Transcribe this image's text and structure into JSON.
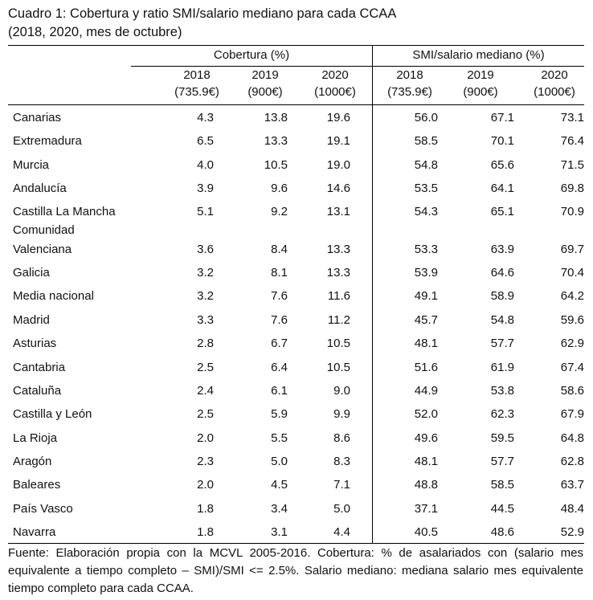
{
  "caption": {
    "line1": "Cuadro 1: Cobertura y ratio SMI/salario mediano para cada CCAA",
    "line2": "(2018, 2020, mes de octubre)"
  },
  "header": {
    "group1": "Cobertura (%)",
    "group2": "SMI/salario mediano (%)",
    "years": [
      {
        "year": "2018",
        "smi": "(735.9€)"
      },
      {
        "year": "2019",
        "smi": "(900€)"
      },
      {
        "year": "2020",
        "smi": "(1000€)"
      },
      {
        "year": "2018",
        "smi": "(735.9€)"
      },
      {
        "year": "2019",
        "smi": "(900€)"
      },
      {
        "year": "2020",
        "smi": "(1000€)"
      }
    ]
  },
  "rows": [
    {
      "region": "Canarias",
      "c2018": "4.3",
      "c2019": "13.8",
      "c2020": "19.6",
      "r2018": "56.0",
      "r2019": "67.1",
      "r2020": "73.1"
    },
    {
      "region": "Extremadura",
      "c2018": "6.5",
      "c2019": "13.3",
      "c2020": "19.1",
      "r2018": "58.5",
      "r2019": "70.1",
      "r2020": "76.4"
    },
    {
      "region": "Murcia",
      "c2018": "4.0",
      "c2019": "10.5",
      "c2020": "19.0",
      "r2018": "54.8",
      "r2019": "65.6",
      "r2020": "71.5"
    },
    {
      "region": "Andalucía",
      "c2018": "3.9",
      "c2019": "9.6",
      "c2020": "14.6",
      "r2018": "53.5",
      "r2019": "64.1",
      "r2020": "69.8"
    },
    {
      "region": "Castilla La Mancha",
      "c2018": "5.1",
      "c2019": "9.2",
      "c2020": "13.1",
      "r2018": "54.3",
      "r2019": "65.1",
      "r2020": "70.9"
    },
    {
      "region": "Comunidad",
      "c2018": "",
      "c2019": "",
      "c2020": "",
      "r2018": "",
      "r2019": "",
      "r2020": ""
    },
    {
      "region": "Valenciana",
      "c2018": "3.6",
      "c2019": "8.4",
      "c2020": "13.3",
      "r2018": "53.3",
      "r2019": "63.9",
      "r2020": "69.7"
    },
    {
      "region": "Galicia",
      "c2018": "3.2",
      "c2019": "8.1",
      "c2020": "13.3",
      "r2018": "53.9",
      "r2019": "64.6",
      "r2020": "70.4"
    },
    {
      "region": "Media nacional",
      "c2018": "3.2",
      "c2019": "7.6",
      "c2020": "11.6",
      "r2018": "49.1",
      "r2019": "58.9",
      "r2020": "64.2"
    },
    {
      "region": "Madrid",
      "c2018": "3.3",
      "c2019": "7.6",
      "c2020": "11.2",
      "r2018": "45.7",
      "r2019": "54.8",
      "r2020": "59.6"
    },
    {
      "region": "Asturias",
      "c2018": "2.8",
      "c2019": "6.7",
      "c2020": "10.5",
      "r2018": "48.1",
      "r2019": "57.7",
      "r2020": "62.9"
    },
    {
      "region": "Cantabria",
      "c2018": "2.5",
      "c2019": "6.4",
      "c2020": "10.5",
      "r2018": "51.6",
      "r2019": "61.9",
      "r2020": "67.4"
    },
    {
      "region": "Cataluña",
      "c2018": "2.4",
      "c2019": "6.1",
      "c2020": "9.0",
      "r2018": "44.9",
      "r2019": "53.8",
      "r2020": "58.6"
    },
    {
      "region": "Castilla y León",
      "c2018": "2.5",
      "c2019": "5.9",
      "c2020": "9.9",
      "r2018": "52.0",
      "r2019": "62.3",
      "r2020": "67.9"
    },
    {
      "region": "La Rioja",
      "c2018": "2.0",
      "c2019": "5.5",
      "c2020": "8.6",
      "r2018": "49.6",
      "r2019": "59.5",
      "r2020": "64.8"
    },
    {
      "region": "Aragón",
      "c2018": "2.3",
      "c2019": "5.0",
      "c2020": "8.3",
      "r2018": "48.1",
      "r2019": "57.7",
      "r2020": "62.8"
    },
    {
      "region": "Baleares",
      "c2018": "2.0",
      "c2019": "4.5",
      "c2020": "7.1",
      "r2018": "48.8",
      "r2019": "58.5",
      "r2020": "63.7"
    },
    {
      "region": "País Vasco",
      "c2018": "1.8",
      "c2019": "3.4",
      "c2020": "5.0",
      "r2018": "37.1",
      "r2019": "44.5",
      "r2020": "48.4"
    },
    {
      "region": "Navarra",
      "c2018": "1.8",
      "c2019": "3.1",
      "c2020": "4.4",
      "r2018": "40.5",
      "r2019": "48.6",
      "r2020": "52.9"
    }
  ],
  "footer": "Fuente: Elaboración propia con la MCVL 2005-2016. Cobertura: % de asalariados con (salario mes equivalente a tiempo completo – SMI)/SMI <= 2.5%. Salario mediano: mediana salario mes equivalente tiempo completo para cada CCAA."
}
